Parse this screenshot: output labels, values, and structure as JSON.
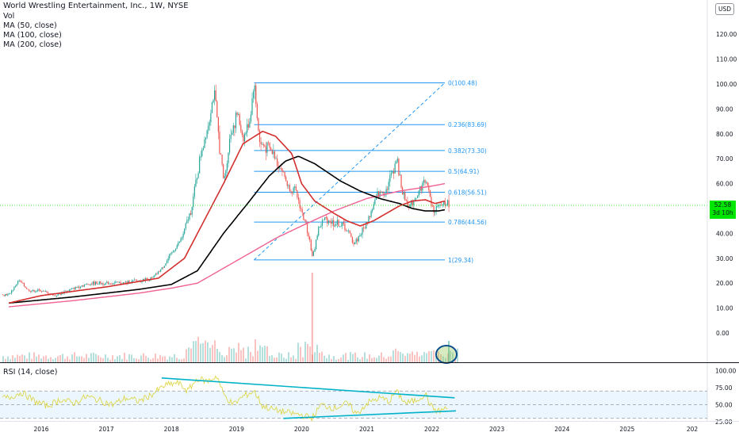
{
  "header": {
    "symbol_line": "World Wrestling Entertainment, Inc., 1W, NYSE",
    "vol_label": "Vol",
    "ma50_label": "MA (50, close)",
    "ma100_label": "MA (100, close)",
    "ma200_label": "MA (200, close)",
    "currency": "USD"
  },
  "price_tag": {
    "price": "52.58",
    "countdown": "3d 10h"
  },
  "rsi_panel": {
    "label": "RSI (14, close)"
  },
  "colors": {
    "candle_up": "#26a69a",
    "candle_down": "#ef5350",
    "ma50": "#d32f2f",
    "ma100": "#000000",
    "ma200": "#f06292",
    "fib": "#2196f3",
    "rsi_line": "#dfd74a",
    "trendline": "#00b2c8",
    "highlight_circle": "#0c4f8b",
    "last_price": "#00e600"
  },
  "chart_data": [
    {
      "type": "candlestick",
      "title": "World Wrestling Entertainment, Inc., 1W, NYSE",
      "x_ticks": [
        "2016",
        "2017",
        "2018",
        "2019",
        "2020",
        "2021",
        "2022",
        "2023",
        "2024",
        "2025",
        "202"
      ],
      "y_ticks": [
        "120.00",
        "110.00",
        "100.00",
        "90.00",
        "80.00",
        "70.00",
        "60.00",
        "50.00",
        "40.00",
        "30.00",
        "20.00",
        "10.00",
        "0.00"
      ],
      "ylim": [
        -6,
        125
      ],
      "last_price": 52.58,
      "price_points": [
        {
          "x": 2015.5,
          "y": 15.5
        },
        {
          "x": 2015.65,
          "y": 21
        },
        {
          "x": 2015.8,
          "y": 17
        },
        {
          "x": 2016.0,
          "y": 17
        },
        {
          "x": 2016.2,
          "y": 15
        },
        {
          "x": 2016.4,
          "y": 17
        },
        {
          "x": 2016.6,
          "y": 19
        },
        {
          "x": 2016.8,
          "y": 20
        },
        {
          "x": 2017.0,
          "y": 20
        },
        {
          "x": 2017.2,
          "y": 20
        },
        {
          "x": 2017.5,
          "y": 21
        },
        {
          "x": 2017.7,
          "y": 22
        },
        {
          "x": 2017.85,
          "y": 26
        },
        {
          "x": 2018.0,
          "y": 32
        },
        {
          "x": 2018.15,
          "y": 38
        },
        {
          "x": 2018.3,
          "y": 50
        },
        {
          "x": 2018.45,
          "y": 73
        },
        {
          "x": 2018.55,
          "y": 83
        },
        {
          "x": 2018.65,
          "y": 97
        },
        {
          "x": 2018.72,
          "y": 78
        },
        {
          "x": 2018.8,
          "y": 60
        },
        {
          "x": 2018.9,
          "y": 80
        },
        {
          "x": 2019.0,
          "y": 88
        },
        {
          "x": 2019.1,
          "y": 78
        },
        {
          "x": 2019.2,
          "y": 86
        },
        {
          "x": 2019.26,
          "y": 100.5
        },
        {
          "x": 2019.35,
          "y": 76
        },
        {
          "x": 2019.5,
          "y": 74
        },
        {
          "x": 2019.6,
          "y": 70
        },
        {
          "x": 2019.7,
          "y": 65
        },
        {
          "x": 2019.8,
          "y": 58
        },
        {
          "x": 2019.9,
          "y": 57
        },
        {
          "x": 2020.0,
          "y": 48
        },
        {
          "x": 2020.1,
          "y": 40
        },
        {
          "x": 2020.16,
          "y": 30
        },
        {
          "x": 2020.25,
          "y": 42
        },
        {
          "x": 2020.35,
          "y": 46
        },
        {
          "x": 2020.5,
          "y": 44
        },
        {
          "x": 2020.65,
          "y": 43
        },
        {
          "x": 2020.8,
          "y": 36
        },
        {
          "x": 2020.95,
          "y": 42
        },
        {
          "x": 2021.05,
          "y": 48
        },
        {
          "x": 2021.15,
          "y": 55
        },
        {
          "x": 2021.3,
          "y": 58
        },
        {
          "x": 2021.45,
          "y": 70
        },
        {
          "x": 2021.55,
          "y": 55
        },
        {
          "x": 2021.65,
          "y": 51
        },
        {
          "x": 2021.8,
          "y": 57
        },
        {
          "x": 2021.9,
          "y": 62
        },
        {
          "x": 2022.0,
          "y": 50
        },
        {
          "x": 2022.1,
          "y": 50
        },
        {
          "x": 2022.18,
          "y": 52.58
        }
      ],
      "ma50_points": [
        {
          "x": 2015.5,
          "y": 12
        },
        {
          "x": 2016.0,
          "y": 15
        },
        {
          "x": 2017.0,
          "y": 18.5
        },
        {
          "x": 2017.8,
          "y": 22
        },
        {
          "x": 2018.2,
          "y": 30
        },
        {
          "x": 2018.5,
          "y": 45
        },
        {
          "x": 2018.8,
          "y": 60
        },
        {
          "x": 2019.1,
          "y": 76
        },
        {
          "x": 2019.4,
          "y": 81
        },
        {
          "x": 2019.6,
          "y": 79
        },
        {
          "x": 2019.85,
          "y": 72
        },
        {
          "x": 2020.0,
          "y": 60
        },
        {
          "x": 2020.2,
          "y": 53
        },
        {
          "x": 2020.5,
          "y": 48
        },
        {
          "x": 2020.7,
          "y": 45
        },
        {
          "x": 2020.9,
          "y": 43
        },
        {
          "x": 2021.1,
          "y": 45
        },
        {
          "x": 2021.3,
          "y": 48
        },
        {
          "x": 2021.5,
          "y": 51
        },
        {
          "x": 2021.7,
          "y": 53
        },
        {
          "x": 2021.9,
          "y": 53.5
        },
        {
          "x": 2022.05,
          "y": 52
        },
        {
          "x": 2022.2,
          "y": 53
        }
      ],
      "ma100_points": [
        {
          "x": 2015.5,
          "y": 12
        },
        {
          "x": 2016.5,
          "y": 14.5
        },
        {
          "x": 2017.5,
          "y": 17.5
        },
        {
          "x": 2018.0,
          "y": 19.5
        },
        {
          "x": 2018.4,
          "y": 25
        },
        {
          "x": 2018.8,
          "y": 40
        },
        {
          "x": 2019.2,
          "y": 53
        },
        {
          "x": 2019.5,
          "y": 63
        },
        {
          "x": 2019.75,
          "y": 69
        },
        {
          "x": 2019.95,
          "y": 71
        },
        {
          "x": 2020.2,
          "y": 68
        },
        {
          "x": 2020.6,
          "y": 61
        },
        {
          "x": 2020.9,
          "y": 57
        },
        {
          "x": 2021.2,
          "y": 54
        },
        {
          "x": 2021.5,
          "y": 52
        },
        {
          "x": 2021.7,
          "y": 50
        },
        {
          "x": 2021.9,
          "y": 49
        },
        {
          "x": 2022.1,
          "y": 49
        },
        {
          "x": 2022.2,
          "y": 49.5
        }
      ],
      "ma200_points": [
        {
          "x": 2015.5,
          "y": 10.5
        },
        {
          "x": 2016.5,
          "y": 13
        },
        {
          "x": 2017.5,
          "y": 16
        },
        {
          "x": 2018.0,
          "y": 18
        },
        {
          "x": 2018.4,
          "y": 20
        },
        {
          "x": 2018.8,
          "y": 26
        },
        {
          "x": 2019.2,
          "y": 32
        },
        {
          "x": 2019.6,
          "y": 38
        },
        {
          "x": 2020.0,
          "y": 43
        },
        {
          "x": 2020.5,
          "y": 49
        },
        {
          "x": 2021.0,
          "y": 54
        },
        {
          "x": 2021.5,
          "y": 57
        },
        {
          "x": 2022.0,
          "y": 59
        },
        {
          "x": 2022.2,
          "y": 60
        }
      ],
      "fibonacci": {
        "x_start": 2019.27,
        "x_end": 2022.2,
        "levels": [
          {
            "label": "0(100.48)",
            "value": 100.48
          },
          {
            "label": "0.236(83.69)",
            "value": 83.69
          },
          {
            "label": "0.382(73.30)",
            "value": 73.3
          },
          {
            "label": "0.5(64.91)",
            "value": 64.91
          },
          {
            "label": "0.618(56.51)",
            "value": 56.51
          },
          {
            "label": "0.786(44.56)",
            "value": 44.56
          },
          {
            "label": "1(29.34)",
            "value": 29.34
          }
        ]
      },
      "fib_diagonal": [
        {
          "x": 2019.27,
          "y": 29.34
        },
        {
          "x": 2022.2,
          "y": 100.48
        }
      ],
      "volume_note": "volume bars along bottom of price pane; spike near 2020.15; last bars circled"
    },
    {
      "type": "line",
      "title": "RSI (14, close)",
      "y_ticks": [
        "100.00",
        "75.00",
        "50.00",
        "25.00"
      ],
      "ylim": [
        17,
        100
      ],
      "band": [
        30,
        70
      ],
      "rsi_points": [
        {
          "x": 2015.5,
          "y": 60
        },
        {
          "x": 2015.7,
          "y": 68
        },
        {
          "x": 2015.9,
          "y": 55
        },
        {
          "x": 2016.1,
          "y": 48
        },
        {
          "x": 2016.3,
          "y": 58
        },
        {
          "x": 2016.5,
          "y": 52
        },
        {
          "x": 2016.7,
          "y": 62
        },
        {
          "x": 2016.9,
          "y": 56
        },
        {
          "x": 2017.1,
          "y": 50
        },
        {
          "x": 2017.3,
          "y": 60
        },
        {
          "x": 2017.5,
          "y": 55
        },
        {
          "x": 2017.7,
          "y": 65
        },
        {
          "x": 2017.9,
          "y": 78
        },
        {
          "x": 2018.1,
          "y": 82
        },
        {
          "x": 2018.25,
          "y": 70
        },
        {
          "x": 2018.4,
          "y": 88
        },
        {
          "x": 2018.55,
          "y": 84
        },
        {
          "x": 2018.7,
          "y": 92
        },
        {
          "x": 2018.8,
          "y": 65
        },
        {
          "x": 2018.95,
          "y": 50
        },
        {
          "x": 2019.1,
          "y": 62
        },
        {
          "x": 2019.27,
          "y": 70
        },
        {
          "x": 2019.4,
          "y": 48
        },
        {
          "x": 2019.6,
          "y": 42
        },
        {
          "x": 2019.8,
          "y": 38
        },
        {
          "x": 2020.0,
          "y": 35
        },
        {
          "x": 2020.16,
          "y": 30
        },
        {
          "x": 2020.3,
          "y": 50
        },
        {
          "x": 2020.5,
          "y": 45
        },
        {
          "x": 2020.7,
          "y": 52
        },
        {
          "x": 2020.85,
          "y": 36
        },
        {
          "x": 2021.0,
          "y": 52
        },
        {
          "x": 2021.2,
          "y": 60
        },
        {
          "x": 2021.35,
          "y": 55
        },
        {
          "x": 2021.45,
          "y": 70
        },
        {
          "x": 2021.6,
          "y": 52
        },
        {
          "x": 2021.75,
          "y": 56
        },
        {
          "x": 2021.9,
          "y": 66
        },
        {
          "x": 2022.0,
          "y": 46
        },
        {
          "x": 2022.1,
          "y": 40
        },
        {
          "x": 2022.18,
          "y": 44
        }
      ],
      "trendlines": [
        {
          "points": [
            {
              "x": 2017.85,
              "y": 89
            },
            {
              "x": 2022.35,
              "y": 60
            }
          ]
        },
        {
          "points": [
            {
              "x": 2019.72,
              "y": 30
            },
            {
              "x": 2022.37,
              "y": 41
            }
          ]
        }
      ]
    }
  ]
}
